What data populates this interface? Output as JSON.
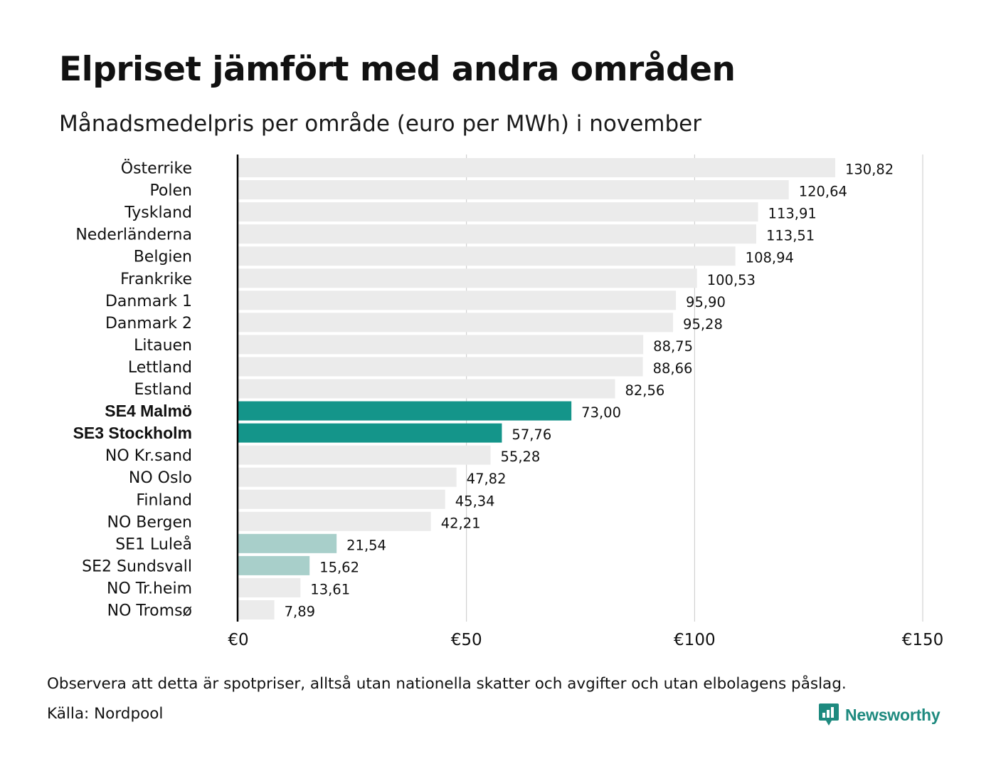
{
  "header": {
    "title": "Elpriset jämfört med andra områden",
    "subtitle": "Månadsmedelpris per område (euro per MWh) i november"
  },
  "footer": {
    "note": "Observera att detta är spotpriser, alltså utan nationella skatter och avgifter och utan elbolagens påslag.",
    "source": "Källa: Nordpool",
    "logo_text": "Newsworthy",
    "logo_icon": "bar-chart-speech-bubble-icon"
  },
  "colors": {
    "default_bar": "#ebebeb",
    "highlight_bar": "#14958a",
    "light_highlight_bar": "#a8cfca",
    "gridline": "#c8c8c8",
    "axis": "#000000",
    "logo": "#1e8a7f"
  },
  "chart_data": {
    "type": "bar",
    "orientation": "horizontal",
    "title": "Elpriset jämfört med andra områden",
    "subtitle": "Månadsmedelpris per område (euro per MWh) i november",
    "xlim": [
      0,
      150
    ],
    "x_ticks": [
      0,
      50,
      100,
      150
    ],
    "x_tick_labels": [
      "€0",
      "€50",
      "€100",
      "€150"
    ],
    "grid": "vertical",
    "categories": [
      "Österrike",
      "Polen",
      "Tyskland",
      "Nederländerna",
      "Belgien",
      "Frankrike",
      "Danmark  1",
      "Danmark  2",
      "Litauen",
      "Lettland",
      "Estland",
      "SE4 Malmö",
      "SE3 Stockholm",
      "NO Kr.sand",
      "NO Oslo",
      "Finland",
      "NO Bergen",
      "SE1  Luleå",
      "SE2  Sundsvall",
      "NO Tr.heim",
      "NO Tromsø"
    ],
    "values": [
      130.82,
      120.64,
      113.91,
      113.51,
      108.94,
      100.53,
      95.9,
      95.28,
      88.75,
      88.66,
      82.56,
      73.0,
      57.76,
      55.28,
      47.82,
      45.34,
      42.21,
      21.54,
      15.62,
      13.61,
      7.89
    ],
    "value_labels": [
      "130,82",
      "120,64",
      "113,91",
      "113,51",
      "108,94",
      "100,53",
      "95,90",
      "95,28",
      "88,75",
      "88,66",
      "82,56",
      "73,00",
      "57,76",
      "55,28",
      "47,82",
      "45,34",
      "42,21",
      "21,54",
      "15,62",
      "13,61",
      "7,89"
    ],
    "highlight": [
      "default",
      "default",
      "default",
      "default",
      "default",
      "default",
      "default",
      "default",
      "default",
      "default",
      "default",
      "strong",
      "strong",
      "default",
      "default",
      "default",
      "default",
      "light",
      "light",
      "default",
      "default"
    ]
  }
}
